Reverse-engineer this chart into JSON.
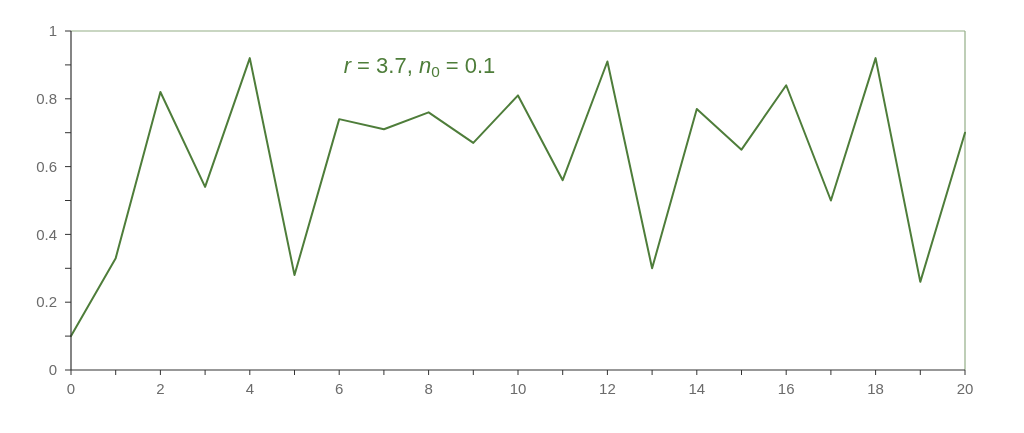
{
  "chart_data": {
    "type": "line",
    "x": [
      0,
      1,
      2,
      3,
      4,
      5,
      6,
      7,
      8,
      9,
      10,
      11,
      12,
      13,
      14,
      15,
      16,
      17,
      18,
      19,
      20
    ],
    "values": [
      0.1,
      0.33,
      0.82,
      0.54,
      0.92,
      0.28,
      0.74,
      0.71,
      0.76,
      0.67,
      0.81,
      0.56,
      0.91,
      0.3,
      0.77,
      0.65,
      0.84,
      0.5,
      0.92,
      0.26,
      0.7
    ],
    "color": "#4e7d3a",
    "xlim": [
      0,
      20
    ],
    "xticks": [
      0,
      {
        "value": 1,
        "label": null
      },
      2,
      {
        "value": 3,
        "label": null
      },
      4,
      {
        "value": 5,
        "label": null
      },
      6,
      {
        "value": 7,
        "label": null
      },
      8,
      {
        "value": 9,
        "label": null
      },
      10,
      {
        "value": 11,
        "label": null
      },
      12,
      {
        "value": 13,
        "label": null
      },
      14,
      {
        "value": 15,
        "label": null
      },
      16,
      {
        "value": 17,
        "label": null
      },
      18,
      {
        "value": 19,
        "label": null
      },
      20
    ],
    "ylim": [
      0,
      1
    ],
    "yticks": [
      0,
      {
        "value": 0.1,
        "label": null
      },
      0.2,
      {
        "value": 0.3,
        "label": null
      },
      0.4,
      {
        "value": 0.5,
        "label": null
      },
      0.6,
      {
        "value": 0.7,
        "label": null
      },
      0.8,
      {
        "value": 0.9,
        "label": null
      },
      1
    ],
    "annotations": [
      "r = 3.7, n$_{0}$ = 0.1"
    ]
  }
}
